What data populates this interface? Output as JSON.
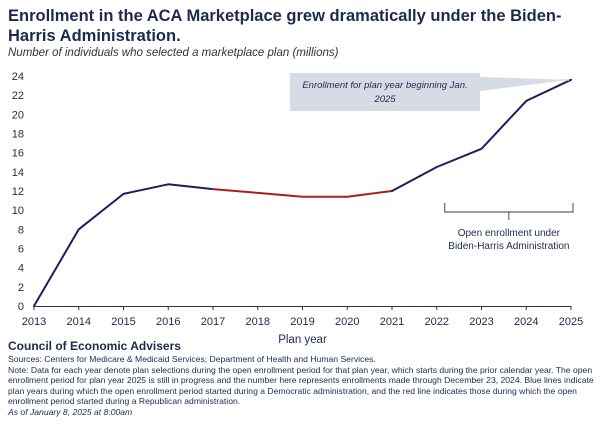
{
  "title": "Enrollment in the ACA Marketplace grew dramatically under the Biden-Harris Administration.",
  "subtitle": "Number of individuals who selected a marketplace plan (millions)",
  "chart_data": {
    "type": "line",
    "title": "Enrollment in the ACA Marketplace grew dramatically under the Biden-Harris Administration.",
    "ylabel": "Number of individuals who selected a marketplace plan (millions)",
    "xlabel": "Plan year",
    "x": [
      2013,
      2014,
      2015,
      2016,
      2017,
      2018,
      2019,
      2020,
      2021,
      2022,
      2023,
      2024,
      2025
    ],
    "values": [
      0,
      8.0,
      11.7,
      12.7,
      12.2,
      11.8,
      11.4,
      11.4,
      12.0,
      14.5,
      16.4,
      21.4,
      23.6
    ],
    "ylim": [
      0,
      24
    ],
    "yticks": [
      0,
      2,
      4,
      6,
      8,
      10,
      12,
      14,
      16,
      18,
      20,
      22,
      24
    ],
    "grid": false,
    "series": [
      {
        "name": "Democratic administration",
        "color": "#1b1f5c",
        "x": [
          2013,
          2014,
          2015,
          2016,
          2017
        ],
        "values": [
          0,
          8.0,
          11.7,
          12.7,
          12.2
        ]
      },
      {
        "name": "Republican administration",
        "color": "#b01c1c",
        "x": [
          2017,
          2018,
          2019,
          2020,
          2021
        ],
        "values": [
          12.2,
          11.8,
          11.4,
          11.4,
          12.0
        ]
      },
      {
        "name": "Democratic administration",
        "color": "#1b1f5c",
        "x": [
          2021,
          2022,
          2023,
          2024,
          2025
        ],
        "values": [
          12.0,
          14.5,
          16.4,
          21.4,
          23.6
        ]
      }
    ],
    "annotations": {
      "callout": "Enrollment for plan year beginning Jan. 2025",
      "callout_target_x": 2025,
      "bracket_label": "Open enrollment under Biden-Harris Administration",
      "bracket_range": [
        2022,
        2025
      ]
    }
  },
  "footer": {
    "org": "Council of Economic Advisers",
    "sources": "Sources: Centers for Medicare & Medicaid Services; Department of Health and Human Services.",
    "note": "Note: Data for each year denote plan selections during the open enrollment period for that plan year, which starts during the prior calendar year. The open enrollment period for plan year 2025 is still in progress and the number here represents enrollments made through December 23, 2024. Blue lines indicate plan years during which the open enrollment period started during a Democratic administration, and the red line indicates those during which the open enrollment period started during a Republican administration.",
    "asof": "As of January 8, 2025 at 8:00am"
  },
  "colors": {
    "axis": "#333333",
    "text": "#1b2a4e",
    "callout_bg": "#d7dbe4",
    "bracket": "#2a3a5c"
  }
}
